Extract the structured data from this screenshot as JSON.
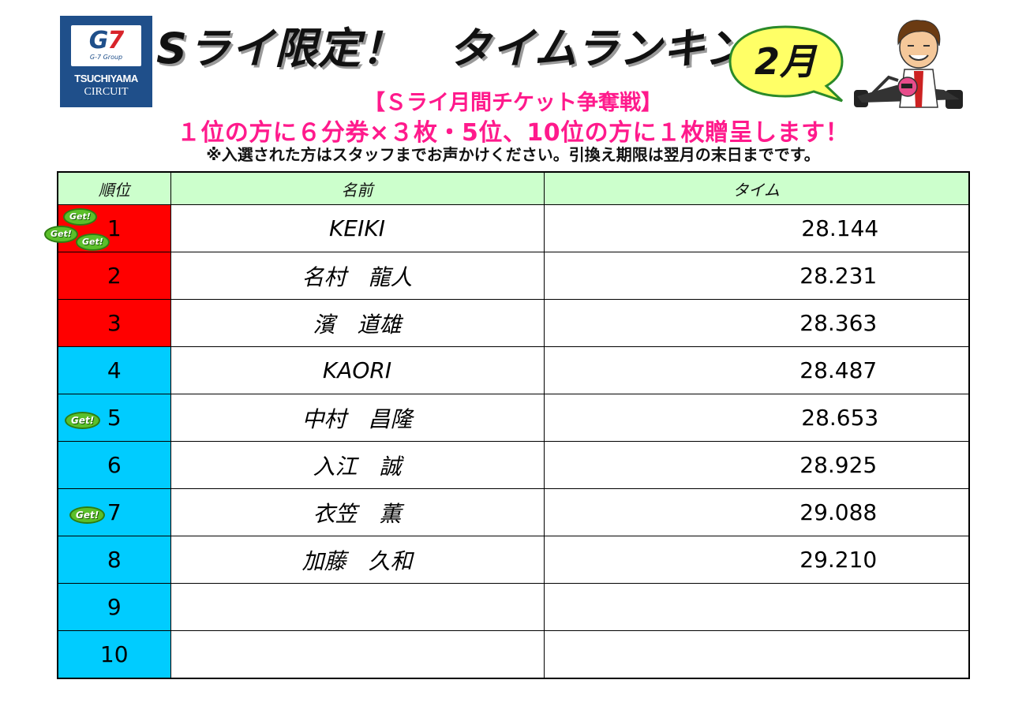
{
  "logo": {
    "brand_g": "G",
    "brand_seven": "7",
    "group": "G-7 Group",
    "name_line1": "TSUCHIYAMA",
    "name_line2": "CIRCUIT"
  },
  "title": "Sライ限定！　タイムランキング",
  "month": "2月",
  "subtitle": "【Ｓライ月間チケット争奪戦】",
  "prize": "１位の方に６分券×３枚・5位、10位の方に１枚贈呈します！",
  "note": "※入選された方はスタッフまでお声かけください。引換え期限は翌月の末日までです。",
  "table": {
    "headers": [
      "順位",
      "名前",
      "タイム"
    ],
    "rows": [
      {
        "rank": "1",
        "name": "KEIKI",
        "time": "28.144"
      },
      {
        "rank": "2",
        "name": "名村　龍人",
        "time": "28.231"
      },
      {
        "rank": "3",
        "name": "濱　道雄",
        "time": "28.363"
      },
      {
        "rank": "4",
        "name": "KAORI",
        "time": "28.487"
      },
      {
        "rank": "5",
        "name": "中村　昌隆",
        "time": "28.653"
      },
      {
        "rank": "6",
        "name": "入江　誠",
        "time": "28.925"
      },
      {
        "rank": "7",
        "name": "衣笠　薫",
        "time": "29.088"
      },
      {
        "rank": "8",
        "name": "加藤　久和",
        "time": "29.210"
      },
      {
        "rank": "9",
        "name": "",
        "time": ""
      },
      {
        "rank": "10",
        "name": "",
        "time": ""
      }
    ]
  },
  "badge_text": "Get!",
  "colors": {
    "top3": "#ff0000",
    "others": "#00ccff",
    "header_bg": "#ccffcc",
    "accent_pink": "#ff1a8c",
    "logo_blue": "#1f4f8a"
  }
}
